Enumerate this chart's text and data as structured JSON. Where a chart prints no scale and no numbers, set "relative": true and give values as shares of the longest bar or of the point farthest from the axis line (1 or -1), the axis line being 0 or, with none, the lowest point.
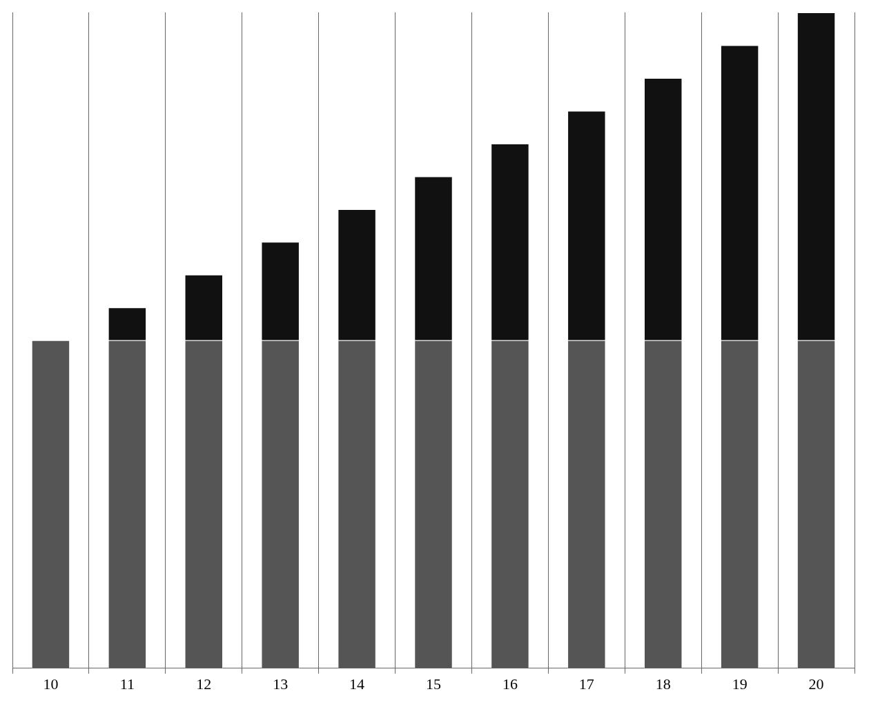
{
  "chart_data": {
    "type": "bar",
    "stacked": true,
    "relative": true,
    "grid": "x",
    "categories": [
      "10",
      "11",
      "12",
      "13",
      "14",
      "15",
      "16",
      "17",
      "18",
      "19",
      "20"
    ],
    "series": [
      {
        "color": "#555555",
        "values": [
          0.5,
          0.5,
          0.5,
          0.5,
          0.5,
          0.5,
          0.5,
          0.5,
          0.5,
          0.5,
          0.5
        ]
      },
      {
        "color": "#111111",
        "values": [
          0,
          0.05,
          0.1,
          0.15,
          0.2,
          0.25,
          0.3,
          0.35,
          0.4,
          0.45,
          0.5
        ]
      }
    ]
  }
}
